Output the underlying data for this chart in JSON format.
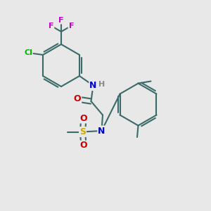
{
  "bg_color": "#e8e8e8",
  "bond_color": "#3a6b6b",
  "bond_width": 1.5,
  "colors": {
    "N": "#0000cc",
    "O": "#cc0000",
    "S": "#ccaa00",
    "Cl": "#00bb00",
    "F": "#cc00cc",
    "H": "#888888"
  },
  "figsize": [
    3.0,
    3.0
  ],
  "dpi": 100
}
